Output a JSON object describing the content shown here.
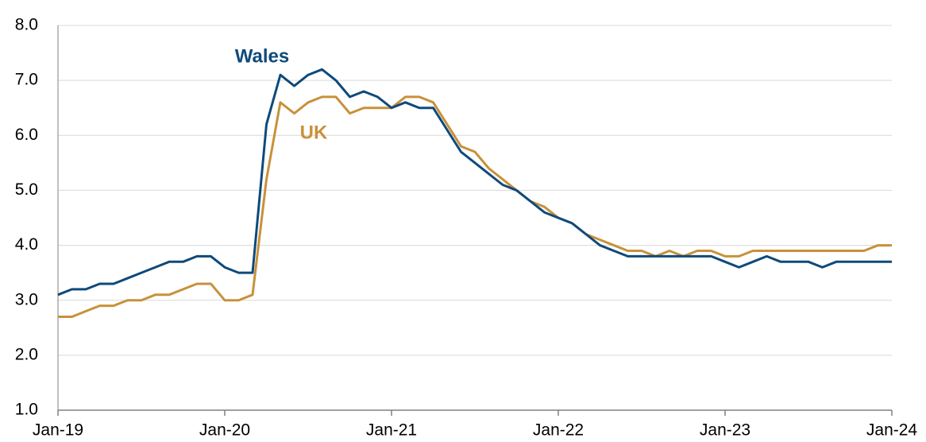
{
  "chart_data": {
    "type": "line",
    "categories": [
      "Jan-19",
      null,
      null,
      null,
      null,
      null,
      null,
      null,
      null,
      null,
      null,
      null,
      "Jan-20",
      null,
      null,
      null,
      null,
      null,
      null,
      null,
      null,
      null,
      null,
      null,
      "Jan-21",
      null,
      null,
      null,
      null,
      null,
      null,
      null,
      null,
      null,
      null,
      null,
      "Jan-22",
      null,
      null,
      null,
      null,
      null,
      null,
      null,
      null,
      null,
      null,
      null,
      "Jan-23",
      null,
      null,
      null,
      null,
      null,
      null,
      null,
      null,
      null,
      null,
      null,
      "Jan-24"
    ],
    "series": [
      {
        "name": "Wales",
        "color": "#0e4a7b",
        "values": [
          3.1,
          3.2,
          3.2,
          3.3,
          3.3,
          3.4,
          3.5,
          3.6,
          3.7,
          3.7,
          3.8,
          3.8,
          3.6,
          3.5,
          3.5,
          6.2,
          7.1,
          6.9,
          7.1,
          7.2,
          7.0,
          6.7,
          6.8,
          6.7,
          6.5,
          6.6,
          6.5,
          6.5,
          6.1,
          5.7,
          5.5,
          5.3,
          5.1,
          5.0,
          4.8,
          4.6,
          4.5,
          4.4,
          4.2,
          4.0,
          3.9,
          3.8,
          3.8,
          3.8,
          3.8,
          3.8,
          3.8,
          3.8,
          3.7,
          3.6,
          3.7,
          3.8,
          3.7,
          3.7,
          3.7,
          3.6,
          3.7,
          3.7,
          3.7,
          3.7,
          3.7
        ]
      },
      {
        "name": "UK",
        "color": "#c8913a",
        "values": [
          2.7,
          2.7,
          2.8,
          2.9,
          2.9,
          3.0,
          3.0,
          3.1,
          3.1,
          3.2,
          3.3,
          3.3,
          3.0,
          3.0,
          3.1,
          5.2,
          6.6,
          6.4,
          6.6,
          6.7,
          6.7,
          6.4,
          6.5,
          6.5,
          6.5,
          6.7,
          6.7,
          6.6,
          6.2,
          5.8,
          5.7,
          5.4,
          5.2,
          5.0,
          4.8,
          4.7,
          4.5,
          4.4,
          4.2,
          4.1,
          4.0,
          3.9,
          3.9,
          3.8,
          3.9,
          3.8,
          3.9,
          3.9,
          3.8,
          3.8,
          3.9,
          3.9,
          3.9,
          3.9,
          3.9,
          3.9,
          3.9,
          3.9,
          3.9,
          4.0,
          4.0
        ]
      }
    ],
    "ylim": [
      1,
      8
    ],
    "yticks": [
      {
        "value": 1,
        "label": "1.0"
      },
      {
        "value": 2,
        "label": "2.0"
      },
      {
        "value": 3,
        "label": "3.0"
      },
      {
        "value": 4,
        "label": "4.0"
      },
      {
        "value": 5,
        "label": "5.0"
      },
      {
        "value": 6,
        "label": "6.0"
      },
      {
        "value": 7,
        "label": "7.0"
      },
      {
        "value": 8,
        "label": "8.0"
      }
    ],
    "grid": true
  }
}
